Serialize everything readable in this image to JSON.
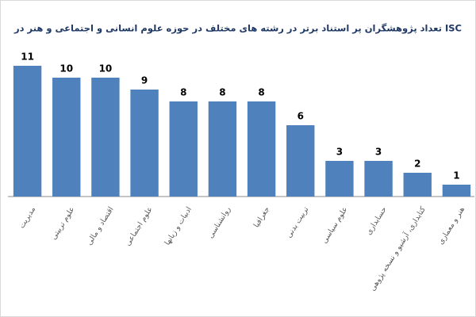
{
  "chart_data": {
    "type": "bar",
    "title": "تعداد پژوهشگران پر استناد برتر در رشته های مختلف در حوزه علوم انسانی و اجتماعی و هنر در ISC",
    "categories": [
      "مدیریت",
      "علوم تربیتی",
      "اقتصاد و مالی",
      "علوم اجتماعی",
      "ادبیات و زبانها",
      "روانشناسی",
      "جغرافیا",
      "تربیت بدنی",
      "علوم سیاسی",
      "حسابداری",
      "کتابداری، آرشیو و نسخه پژوهی",
      "هنر و معماری"
    ],
    "values": [
      11,
      10,
      10,
      9,
      8,
      8,
      8,
      6,
      3,
      3,
      2,
      1
    ],
    "color": "#4f81bd",
    "ylim": [
      0,
      12
    ]
  }
}
